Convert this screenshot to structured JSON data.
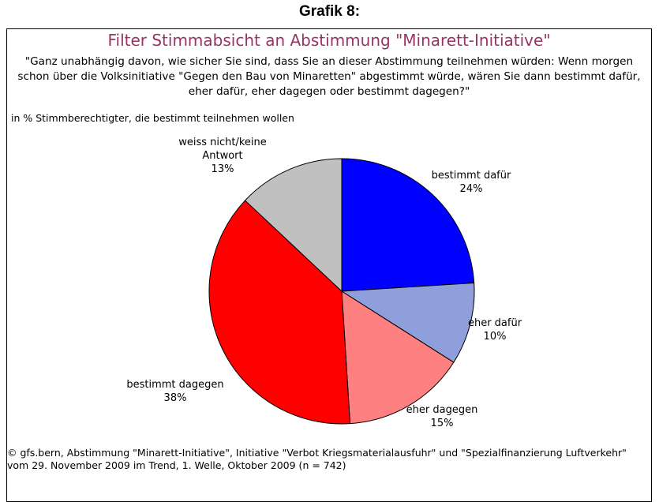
{
  "chart_data": {
    "type": "pie",
    "header": "Grafik 8:",
    "title": "Filter Stimmabsicht an Abstimmung \"Minarett-Initiative\"",
    "subtitle": "\"Ganz unabhängig davon, wie sicher Sie sind, dass Sie an dieser Abstimmung teilnehmen würden: Wenn morgen schon über die Volksinitiative \"Gegen den Bau von Minaretten\" abgestimmt würde, wären Sie dann bestimmt dafür, eher dafür, eher dagegen oder bestimmt dagegen?\"",
    "note": "in % Stimmberechtigter, die bestimmt teilnehmen wollen",
    "categories": [
      "bestimmt dafür",
      "eher dafür",
      "eher dagegen",
      "bestimmt dagegen",
      "weiss nicht/keine Antwort"
    ],
    "values": [
      24,
      10,
      15,
      38,
      13
    ],
    "value_labels": [
      "24%",
      "10%",
      "15%",
      "38%",
      "13%"
    ],
    "colors": [
      "#0000ff",
      "#8f9fdc",
      "#ff8080",
      "#ff0000",
      "#c0c0c0"
    ],
    "footer": [
      "© gfs.bern, Abstimmung \"Minarett-Initiative\", Initiative \"Verbot Kriegsmaterialausfuhr\" und \"Spezialfinanzierung Luftverkehr\"",
      "vom 29. November 2009 im Trend, 1. Welle, Oktober 2009 (n = 742)"
    ]
  }
}
